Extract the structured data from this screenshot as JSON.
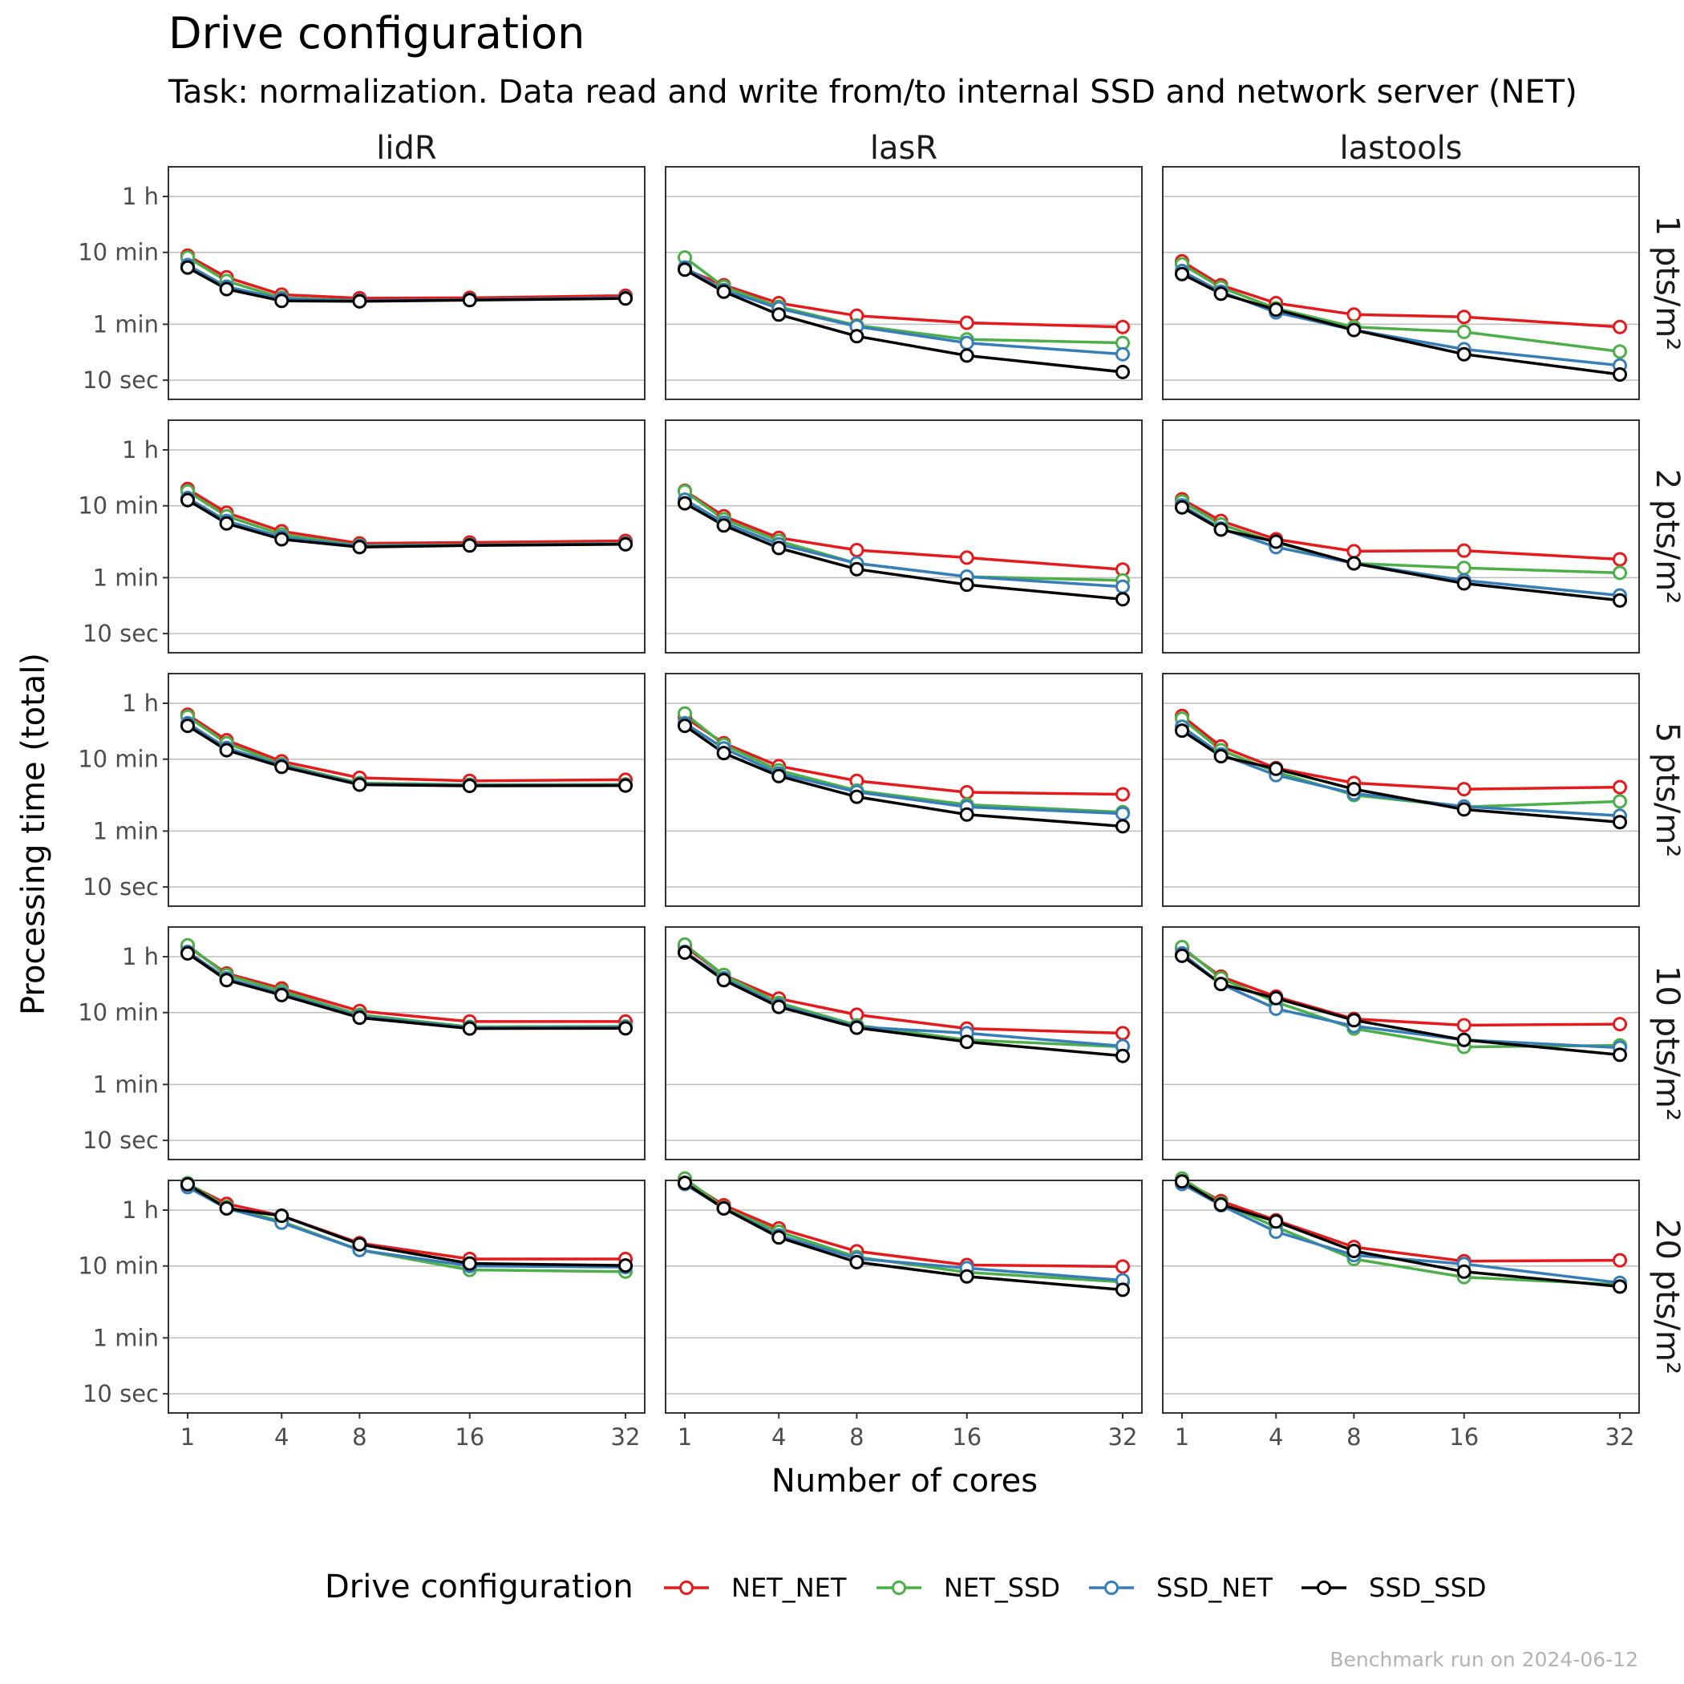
{
  "chart_data": {
    "type": "line",
    "title": "Drive configuration",
    "subtitle": "Task: normalization. Data read and write from/to internal SSD and network server (NET)",
    "xlabel": "Number of cores",
    "ylabel": "Processing time (total)",
    "caption": "Benchmark run on 2024-06-12",
    "facet_columns": [
      "lidR",
      "lasR",
      "lastools"
    ],
    "facet_rows": [
      {
        "value": "1",
        "unit": "pts/m²"
      },
      {
        "value": "2",
        "unit": "pts/m²"
      },
      {
        "value": "5",
        "unit": "pts/m²"
      },
      {
        "value": "10",
        "unit": "pts/m²"
      },
      {
        "value": "20",
        "unit": "pts/m²"
      }
    ],
    "x": [
      1,
      2,
      4,
      8,
      16,
      32
    ],
    "x_ticks": [
      1,
      4,
      8,
      16,
      32
    ],
    "x_scale": "sqrt",
    "y_scale": "log",
    "y_unit": "seconds",
    "y_ticks": [
      {
        "value": 10,
        "label": "10 sec"
      },
      {
        "value": 60,
        "label": "1 min"
      },
      {
        "value": 600,
        "label": "10 min"
      },
      {
        "value": 3600,
        "label": "1 h"
      }
    ],
    "ylim": [
      7,
      7200
    ],
    "grid": "horizontal major",
    "legend": {
      "title": "Drive configuration",
      "position": "bottom",
      "entries": [
        "NET_NET",
        "NET_SSD",
        "SSD_NET",
        "SSD_SSD"
      ]
    },
    "series_colors": {
      "NET_NET": "#e41a1c",
      "NET_SSD": "#4daf4a",
      "SSD_NET": "#377eb8",
      "SSD_SSD": "#000000"
    },
    "panels": [
      {
        "row": 0,
        "col": 0,
        "series": {
          "NET_NET": [
            540,
            270,
            155,
            138,
            140,
            150
          ],
          "NET_SSD": [
            510,
            240,
            140,
            128,
            132,
            140
          ],
          "SSD_NET": [
            400,
            200,
            135,
            128,
            132,
            140
          ],
          "SSD_SSD": [
            370,
            185,
            127,
            125,
            130,
            137
          ]
        }
      },
      {
        "row": 0,
        "col": 1,
        "series": {
          "NET_NET": [
            350,
            210,
            118,
            79,
            63,
            55
          ],
          "NET_SSD": [
            510,
            200,
            105,
            58,
            37,
            33
          ],
          "SSD_NET": [
            370,
            180,
            100,
            56,
            33,
            23
          ],
          "SSD_SSD": [
            345,
            170,
            82,
            41,
            22,
            13
          ]
        }
      },
      {
        "row": 0,
        "col": 2,
        "series": {
          "NET_NET": [
            450,
            210,
            118,
            82,
            76,
            55
          ],
          "NET_SSD": [
            410,
            195,
            100,
            55,
            47,
            25
          ],
          "SSD_NET": [
            330,
            170,
            88,
            50,
            27,
            16
          ],
          "SSD_SSD": [
            300,
            160,
            96,
            50,
            23,
            12
          ]
        }
      },
      {
        "row": 1,
        "col": 0,
        "series": {
          "NET_NET": [
            1030,
            480,
            265,
            180,
            185,
            195
          ],
          "NET_SSD": [
            950,
            430,
            240,
            168,
            172,
            180
          ],
          "SSD_NET": [
            770,
            370,
            220,
            165,
            170,
            178
          ],
          "SSD_SSD": [
            720,
            340,
            205,
            160,
            168,
            175
          ]
        }
      },
      {
        "row": 1,
        "col": 1,
        "series": {
          "NET_NET": [
            970,
            430,
            215,
            145,
            114,
            78
          ],
          "NET_SSD": [
            950,
            390,
            195,
            95,
            62,
            55
          ],
          "SSD_NET": [
            730,
            350,
            175,
            95,
            62,
            45
          ],
          "SSD_SSD": [
            650,
            320,
            155,
            79,
            48,
            30
          ]
        }
      },
      {
        "row": 1,
        "col": 2,
        "series": {
          "NET_NET": [
            740,
            370,
            205,
            140,
            143,
            108
          ],
          "NET_SSD": [
            690,
            330,
            185,
            95,
            82,
            70
          ],
          "SSD_NET": [
            610,
            290,
            160,
            95,
            55,
            34
          ],
          "SSD_SSD": [
            570,
            280,
            190,
            95,
            50,
            29
          ]
        }
      },
      {
        "row": 2,
        "col": 0,
        "series": {
          "NET_NET": [
            2500,
            1100,
            560,
            330,
            300,
            310
          ],
          "NET_SSD": [
            2350,
            1000,
            510,
            280,
            265,
            268
          ],
          "SSD_NET": [
            1900,
            860,
            490,
            270,
            260,
            262
          ],
          "SSD_SSD": [
            1750,
            800,
            470,
            265,
            255,
            258
          ]
        }
      },
      {
        "row": 2,
        "col": 1,
        "series": {
          "NET_NET": [
            2300,
            1000,
            480,
            300,
            208,
            195
          ],
          "NET_SSD": [
            2600,
            950,
            420,
            220,
            140,
            110
          ],
          "SSD_NET": [
            1900,
            850,
            380,
            210,
            130,
            105
          ],
          "SSD_SSD": [
            1750,
            730,
            350,
            180,
            102,
            70
          ]
        }
      },
      {
        "row": 2,
        "col": 2,
        "series": {
          "NET_NET": [
            2400,
            900,
            450,
            280,
            230,
            245
          ],
          "NET_SSD": [
            2200,
            800,
            400,
            190,
            130,
            155
          ],
          "SSD_NET": [
            1700,
            700,
            360,
            200,
            132,
            98
          ],
          "SSD_SSD": [
            1500,
            660,
            440,
            230,
            120,
            80
          ]
        }
      },
      {
        "row": 3,
        "col": 0,
        "series": {
          "NET_NET": [
            5000,
            2100,
            1300,
            630,
            450,
            450
          ],
          "NET_SSD": [
            5200,
            2000,
            1200,
            560,
            380,
            385
          ],
          "SSD_NET": [
            4200,
            1800,
            1100,
            530,
            370,
            375
          ],
          "SSD_SSD": [
            4000,
            1700,
            1050,
            510,
            360,
            362
          ]
        }
      },
      {
        "row": 3,
        "col": 1,
        "series": {
          "NET_NET": [
            5000,
            2000,
            940,
            560,
            360,
            310
          ],
          "NET_SSD": [
            5300,
            2000,
            820,
            400,
            250,
            200
          ],
          "SSD_NET": [
            4200,
            1800,
            760,
            380,
            310,
            205
          ],
          "SSD_SSD": [
            4100,
            1700,
            720,
            370,
            235,
            150
          ]
        }
      },
      {
        "row": 3,
        "col": 2,
        "series": {
          "NET_NET": [
            4700,
            1900,
            1000,
            490,
            400,
            415
          ],
          "NET_SSD": [
            4900,
            1800,
            840,
            360,
            200,
            210
          ],
          "SSD_NET": [
            4000,
            1500,
            680,
            390,
            250,
            195
          ],
          "SSD_SSD": [
            3700,
            1500,
            950,
            470,
            250,
            155
          ]
        }
      },
      {
        "row": 4,
        "col": 0,
        "series": {
          "NET_NET": [
            8300,
            4400,
            3000,
            1250,
            750,
            750
          ],
          "NET_SSD": [
            8500,
            4000,
            2500,
            1000,
            530,
            500
          ],
          "SSD_NET": [
            7500,
            3800,
            2400,
            1000,
            600,
            580
          ],
          "SSD_SSD": [
            8200,
            3800,
            3000,
            1200,
            650,
            610
          ]
        }
      },
      {
        "row": 4,
        "col": 1,
        "series": {
          "NET_NET": [
            9300,
            4200,
            2000,
            960,
            620,
            590
          ],
          "NET_SSD": [
            9900,
            3900,
            1800,
            800,
            490,
            360
          ],
          "SSD_NET": [
            8300,
            3800,
            1600,
            760,
            560,
            380
          ],
          "SSD_SSD": [
            8600,
            3800,
            1500,
            680,
            430,
            280
          ]
        }
      },
      {
        "row": 4,
        "col": 2,
        "series": {
          "NET_NET": [
            9300,
            4800,
            2600,
            1100,
            700,
            720
          ],
          "NET_SSD": [
            9900,
            4500,
            2100,
            750,
            420,
            330
          ],
          "SSD_NET": [
            8300,
            4200,
            1800,
            850,
            640,
            350
          ],
          "SSD_SSD": [
            9000,
            4300,
            2500,
            970,
            500,
            310
          ]
        }
      }
    ]
  }
}
